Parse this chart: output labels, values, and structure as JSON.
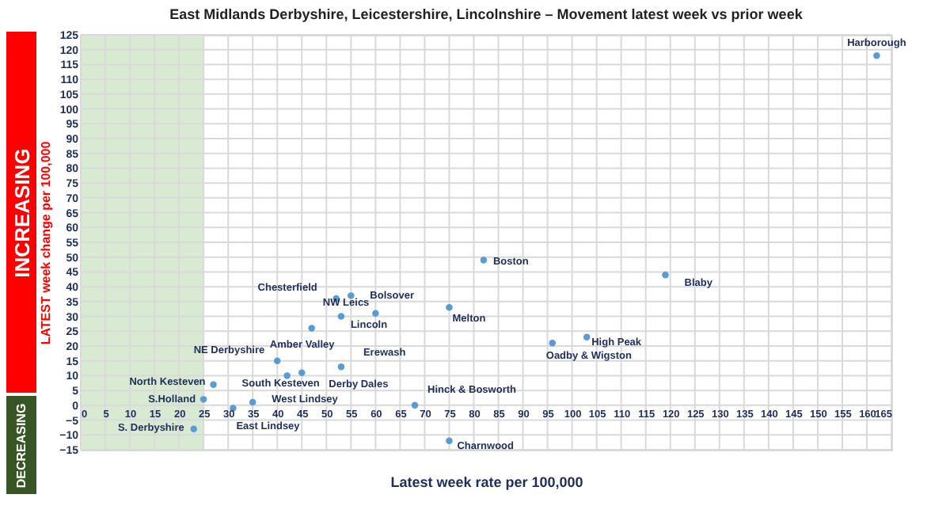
{
  "chart_data": {
    "type": "scatter",
    "title": "East Midlands Derbyshire, Leicestershire, Lincolnshire – Movement latest week vs prior week",
    "xlabel": "Latest week rate per 100,000",
    "ylabel": "LATEST week change per 100,000",
    "x": [
      162,
      82,
      119,
      75,
      96,
      103,
      68,
      75,
      52,
      55,
      60,
      53,
      47,
      40,
      42,
      53,
      45,
      27,
      25,
      35,
      31,
      23
    ],
    "series": [
      {
        "color": "#5b9bd5",
        "values": [
          118,
          49,
          44,
          33,
          21,
          23,
          0,
          -12,
          36,
          37,
          31,
          30,
          26,
          15,
          10,
          13,
          11,
          7,
          2,
          1,
          -1,
          -8
        ]
      }
    ],
    "marker": "circle",
    "grid": true,
    "xlim": [
      0,
      165
    ],
    "xticks": [
      0,
      5,
      10,
      15,
      20,
      25,
      30,
      35,
      40,
      45,
      50,
      55,
      60,
      65,
      70,
      75,
      80,
      85,
      90,
      95,
      100,
      105,
      110,
      115,
      120,
      125,
      130,
      135,
      140,
      145,
      150,
      155,
      160,
      165
    ],
    "ylim": [
      -15,
      125
    ],
    "yticks": [
      -15,
      -10,
      -5,
      0,
      5,
      10,
      15,
      20,
      25,
      30,
      35,
      40,
      45,
      50,
      55,
      60,
      65,
      70,
      75,
      80,
      85,
      90,
      95,
      100,
      105,
      110,
      115,
      120,
      125
    ],
    "bands": [
      {
        "axis": "x",
        "from": 0,
        "to": 25,
        "color": "#d9ead3"
      }
    ],
    "annotations": [
      "INCREASING",
      "DECREASING",
      {
        "text": "Harborough",
        "x": 162,
        "y": 118
      },
      {
        "text": "Boston",
        "x": 82,
        "y": 49
      },
      {
        "text": "Blaby",
        "x": 119,
        "y": 44
      },
      {
        "text": "Melton",
        "x": 75,
        "y": 33
      },
      {
        "text": "Oadby & Wigston",
        "x": 96,
        "y": 21
      },
      {
        "text": "High Peak",
        "x": 103,
        "y": 23
      },
      {
        "text": "Hinck & Bosworth",
        "x": 68,
        "y": 0
      },
      {
        "text": "Charnwood",
        "x": 75,
        "y": -12
      },
      {
        "text": "Chesterfield",
        "x": 52,
        "y": 36
      },
      {
        "text": "Bolsover",
        "x": 55,
        "y": 37
      },
      {
        "text": "NW Leics",
        "x": 60,
        "y": 31
      },
      {
        "text": "Lincoln",
        "x": 53,
        "y": 30
      },
      {
        "text": "Amber Valley",
        "x": 47,
        "y": 26
      },
      {
        "text": "NE Derbyshire",
        "x": 40,
        "y": 15
      },
      {
        "text": "South Kesteven",
        "x": 42,
        "y": 10
      },
      {
        "text": "Erewash",
        "x": 53,
        "y": 13
      },
      {
        "text": "Derby Dales",
        "x": 45,
        "y": 11
      },
      {
        "text": "North Kesteven",
        "x": 27,
        "y": 7
      },
      {
        "text": "S.Holland",
        "x": 25,
        "y": 2
      },
      {
        "text": "West Lindsey",
        "x": 35,
        "y": 1
      },
      {
        "text": "East Lindsey",
        "x": 31,
        "y": -1
      },
      {
        "text": "S. Derbyshire",
        "x": 23,
        "y": -8
      }
    ]
  }
}
